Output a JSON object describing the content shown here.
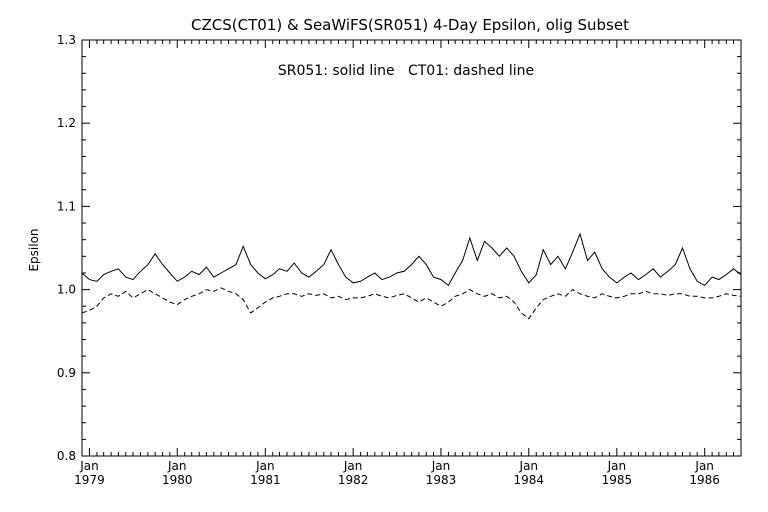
{
  "chart_data": {
    "type": "line",
    "title": "CZCS(CT01) & SeaWiFS(SR051) 4-Day Epsilon, olig Subset",
    "annotation": "SR051: solid line   CT01: dashed line",
    "xlabel": "",
    "ylabel": "Epsilon",
    "xlim": [
      "1978-12-01",
      "1986-06-01"
    ],
    "ylim": [
      0.8,
      1.3
    ],
    "x_ticks": [
      {
        "top": "Jan",
        "bottom": "1979",
        "date": "1979-01-01"
      },
      {
        "top": "Jan",
        "bottom": "1980",
        "date": "1980-01-01"
      },
      {
        "top": "Jan",
        "bottom": "1981",
        "date": "1981-01-01"
      },
      {
        "top": "Jan",
        "bottom": "1982",
        "date": "1982-01-01"
      },
      {
        "top": "Jan",
        "bottom": "1983",
        "date": "1983-01-01"
      },
      {
        "top": "Jan",
        "bottom": "1984",
        "date": "1984-01-01"
      },
      {
        "top": "Jan",
        "bottom": "1985",
        "date": "1985-01-01"
      },
      {
        "top": "Jan",
        "bottom": "1986",
        "date": "1986-01-01"
      }
    ],
    "y_ticks": [
      "0.8",
      "0.9",
      "1.0",
      "1.1",
      "1.2",
      "1.3"
    ],
    "grid": false,
    "series": [
      {
        "name": "SR051",
        "style": "solid",
        "color": "#000000",
        "points": [
          [
            "1978-12-01",
            1.02
          ],
          [
            "1979-01-01",
            1.012
          ],
          [
            "1979-02-01",
            1.01
          ],
          [
            "1979-03-01",
            1.018
          ],
          [
            "1979-04-01",
            1.022
          ],
          [
            "1979-05-01",
            1.025
          ],
          [
            "1979-06-01",
            1.015
          ],
          [
            "1979-07-01",
            1.012
          ],
          [
            "1979-08-01",
            1.022
          ],
          [
            "1979-09-01",
            1.03
          ],
          [
            "1979-10-01",
            1.043
          ],
          [
            "1979-11-01",
            1.03
          ],
          [
            "1979-12-01",
            1.02
          ],
          [
            "1980-01-01",
            1.01
          ],
          [
            "1980-02-01",
            1.015
          ],
          [
            "1980-03-01",
            1.022
          ],
          [
            "1980-04-01",
            1.018
          ],
          [
            "1980-05-01",
            1.027
          ],
          [
            "1980-06-01",
            1.015
          ],
          [
            "1980-07-01",
            1.02
          ],
          [
            "1980-08-01",
            1.025
          ],
          [
            "1980-09-01",
            1.03
          ],
          [
            "1980-10-01",
            1.052
          ],
          [
            "1980-11-01",
            1.03
          ],
          [
            "1980-12-01",
            1.02
          ],
          [
            "1981-01-01",
            1.013
          ],
          [
            "1981-02-01",
            1.018
          ],
          [
            "1981-03-01",
            1.025
          ],
          [
            "1981-04-01",
            1.022
          ],
          [
            "1981-05-01",
            1.032
          ],
          [
            "1981-06-01",
            1.02
          ],
          [
            "1981-07-01",
            1.015
          ],
          [
            "1981-08-01",
            1.022
          ],
          [
            "1981-09-01",
            1.03
          ],
          [
            "1981-10-01",
            1.048
          ],
          [
            "1981-11-01",
            1.03
          ],
          [
            "1981-12-01",
            1.015
          ],
          [
            "1982-01-01",
            1.008
          ],
          [
            "1982-02-01",
            1.01
          ],
          [
            "1982-03-01",
            1.015
          ],
          [
            "1982-04-01",
            1.02
          ],
          [
            "1982-05-01",
            1.012
          ],
          [
            "1982-06-01",
            1.015
          ],
          [
            "1982-07-01",
            1.02
          ],
          [
            "1982-08-01",
            1.022
          ],
          [
            "1982-09-01",
            1.03
          ],
          [
            "1982-10-01",
            1.04
          ],
          [
            "1982-11-01",
            1.03
          ],
          [
            "1982-12-01",
            1.015
          ],
          [
            "1983-01-01",
            1.012
          ],
          [
            "1983-02-01",
            1.005
          ],
          [
            "1983-03-01",
            1.02
          ],
          [
            "1983-04-01",
            1.035
          ],
          [
            "1983-05-01",
            1.062
          ],
          [
            "1983-06-01",
            1.035
          ],
          [
            "1983-07-01",
            1.058
          ],
          [
            "1983-08-01",
            1.05
          ],
          [
            "1983-09-01",
            1.04
          ],
          [
            "1983-10-01",
            1.05
          ],
          [
            "1983-11-01",
            1.04
          ],
          [
            "1983-12-01",
            1.022
          ],
          [
            "1984-01-01",
            1.008
          ],
          [
            "1984-02-01",
            1.018
          ],
          [
            "1984-03-01",
            1.048
          ],
          [
            "1984-04-01",
            1.03
          ],
          [
            "1984-05-01",
            1.04
          ],
          [
            "1984-06-01",
            1.025
          ],
          [
            "1984-07-01",
            1.045
          ],
          [
            "1984-08-01",
            1.067
          ],
          [
            "1984-09-01",
            1.035
          ],
          [
            "1984-10-01",
            1.045
          ],
          [
            "1984-11-01",
            1.025
          ],
          [
            "1984-12-01",
            1.015
          ],
          [
            "1985-01-01",
            1.008
          ],
          [
            "1985-02-01",
            1.015
          ],
          [
            "1985-03-01",
            1.02
          ],
          [
            "1985-04-01",
            1.012
          ],
          [
            "1985-05-01",
            1.018
          ],
          [
            "1985-06-01",
            1.025
          ],
          [
            "1985-07-01",
            1.015
          ],
          [
            "1985-08-01",
            1.022
          ],
          [
            "1985-09-01",
            1.03
          ],
          [
            "1985-10-01",
            1.05
          ],
          [
            "1985-11-01",
            1.025
          ],
          [
            "1985-12-01",
            1.01
          ],
          [
            "1986-01-01",
            1.005
          ],
          [
            "1986-02-01",
            1.015
          ],
          [
            "1986-03-01",
            1.012
          ],
          [
            "1986-04-01",
            1.018
          ],
          [
            "1986-05-01",
            1.025
          ],
          [
            "1986-06-01",
            1.018
          ]
        ]
      },
      {
        "name": "CT01",
        "style": "dashed",
        "color": "#000000",
        "points": [
          [
            "1978-12-01",
            0.972
          ],
          [
            "1979-01-01",
            0.975
          ],
          [
            "1979-02-01",
            0.98
          ],
          [
            "1979-03-01",
            0.99
          ],
          [
            "1979-04-01",
            0.995
          ],
          [
            "1979-05-01",
            0.992
          ],
          [
            "1979-06-01",
            0.998
          ],
          [
            "1979-07-01",
            0.99
          ],
          [
            "1979-08-01",
            0.995
          ],
          [
            "1979-09-01",
            1.0
          ],
          [
            "1979-10-01",
            0.995
          ],
          [
            "1979-11-01",
            0.99
          ],
          [
            "1979-12-01",
            0.985
          ],
          [
            "1980-01-01",
            0.982
          ],
          [
            "1980-02-01",
            0.988
          ],
          [
            "1980-03-01",
            0.992
          ],
          [
            "1980-04-01",
            0.995
          ],
          [
            "1980-05-01",
            1.0
          ],
          [
            "1980-06-01",
            0.998
          ],
          [
            "1980-07-01",
            1.002
          ],
          [
            "1980-08-01",
            0.998
          ],
          [
            "1980-09-01",
            0.995
          ],
          [
            "1980-10-01",
            0.988
          ],
          [
            "1980-11-01",
            0.972
          ],
          [
            "1980-12-01",
            0.978
          ],
          [
            "1981-01-01",
            0.985
          ],
          [
            "1981-02-01",
            0.99
          ],
          [
            "1981-03-01",
            0.992
          ],
          [
            "1981-04-01",
            0.995
          ],
          [
            "1981-05-01",
            0.995
          ],
          [
            "1981-06-01",
            0.992
          ],
          [
            "1981-07-01",
            0.995
          ],
          [
            "1981-08-01",
            0.993
          ],
          [
            "1981-09-01",
            0.995
          ],
          [
            "1981-10-01",
            0.99
          ],
          [
            "1981-11-01",
            0.992
          ],
          [
            "1981-12-01",
            0.988
          ],
          [
            "1982-01-01",
            0.99
          ],
          [
            "1982-02-01",
            0.99
          ],
          [
            "1982-03-01",
            0.992
          ],
          [
            "1982-04-01",
            0.995
          ],
          [
            "1982-05-01",
            0.992
          ],
          [
            "1982-06-01",
            0.99
          ],
          [
            "1982-07-01",
            0.993
          ],
          [
            "1982-08-01",
            0.995
          ],
          [
            "1982-09-01",
            0.99
          ],
          [
            "1982-10-01",
            0.985
          ],
          [
            "1982-11-01",
            0.99
          ],
          [
            "1982-12-01",
            0.985
          ],
          [
            "1983-01-01",
            0.98
          ],
          [
            "1983-02-01",
            0.985
          ],
          [
            "1983-03-01",
            0.992
          ],
          [
            "1983-04-01",
            0.995
          ],
          [
            "1983-05-01",
            1.0
          ],
          [
            "1983-06-01",
            0.995
          ],
          [
            "1983-07-01",
            0.992
          ],
          [
            "1983-08-01",
            0.995
          ],
          [
            "1983-09-01",
            0.99
          ],
          [
            "1983-10-01",
            0.992
          ],
          [
            "1983-11-01",
            0.985
          ],
          [
            "1983-12-01",
            0.972
          ],
          [
            "1984-01-01",
            0.965
          ],
          [
            "1984-02-01",
            0.978
          ],
          [
            "1984-03-01",
            0.988
          ],
          [
            "1984-04-01",
            0.992
          ],
          [
            "1984-05-01",
            0.995
          ],
          [
            "1984-06-01",
            0.992
          ],
          [
            "1984-07-01",
            1.0
          ],
          [
            "1984-08-01",
            0.995
          ],
          [
            "1984-09-01",
            0.992
          ],
          [
            "1984-10-01",
            0.99
          ],
          [
            "1984-11-01",
            0.995
          ],
          [
            "1984-12-01",
            0.992
          ],
          [
            "1985-01-01",
            0.99
          ],
          [
            "1985-02-01",
            0.992
          ],
          [
            "1985-03-01",
            0.995
          ],
          [
            "1985-04-01",
            0.995
          ],
          [
            "1985-05-01",
            0.998
          ],
          [
            "1985-06-01",
            0.995
          ],
          [
            "1985-07-01",
            0.995
          ],
          [
            "1985-08-01",
            0.993
          ],
          [
            "1985-09-01",
            0.995
          ],
          [
            "1985-10-01",
            0.995
          ],
          [
            "1985-11-01",
            0.992
          ],
          [
            "1985-12-01",
            0.992
          ],
          [
            "1986-01-01",
            0.99
          ],
          [
            "1986-02-01",
            0.99
          ],
          [
            "1986-03-01",
            0.992
          ],
          [
            "1986-04-01",
            0.995
          ],
          [
            "1986-05-01",
            0.993
          ],
          [
            "1986-06-01",
            0.992
          ]
        ]
      }
    ]
  }
}
